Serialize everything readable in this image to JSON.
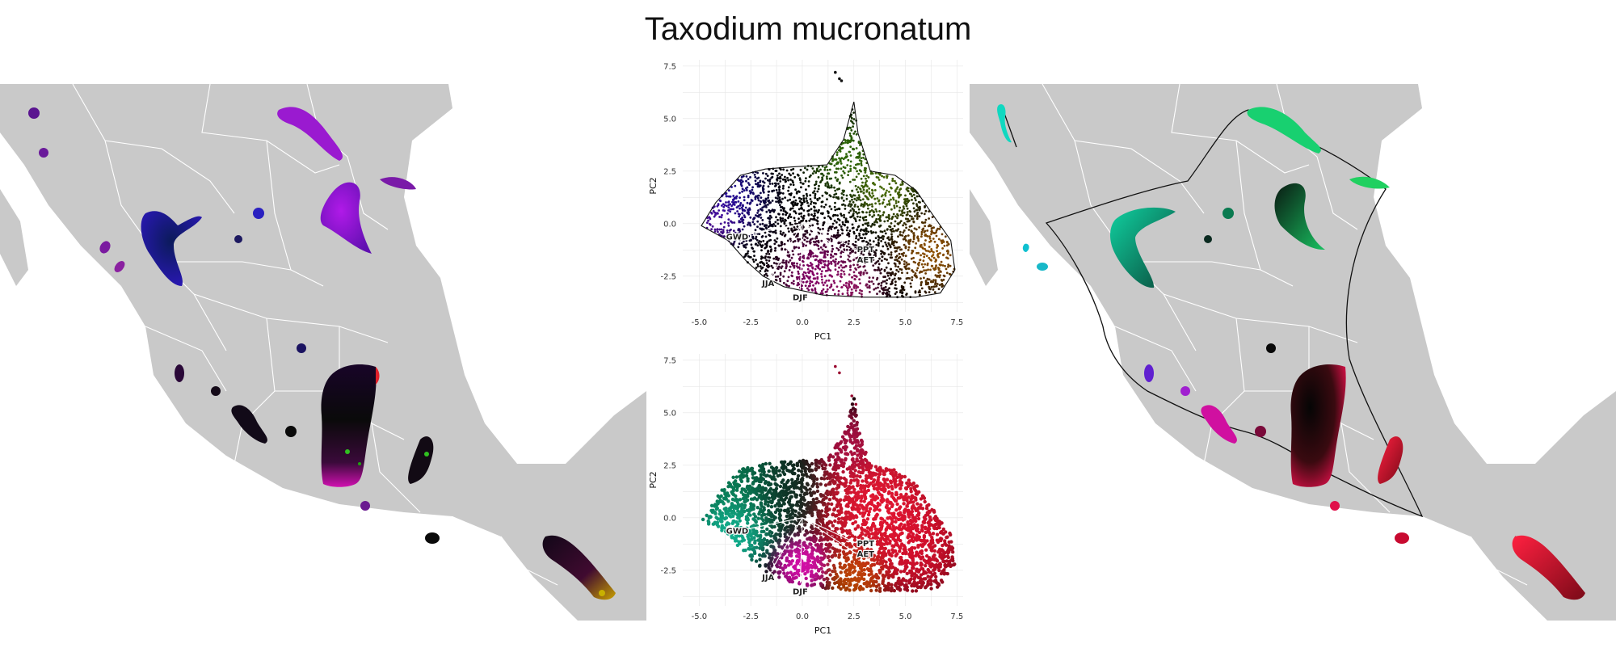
{
  "figure": {
    "title": "Taxodium mucronatum"
  },
  "colors": {
    "land": "#c9c9c9",
    "borders": "#ffffff",
    "grid": "#e6e6e6",
    "background": "#ffffff"
  },
  "maps": {
    "left": {
      "style": "climate-color"
    },
    "right": {
      "style": "cluster-color",
      "hull": "concave"
    }
  },
  "chart_data": [
    {
      "type": "scatter",
      "panel": "top",
      "xlabel": "PC1",
      "ylabel": "PC2",
      "xlim": [
        -5.8,
        7.8
      ],
      "ylim": [
        -4.2,
        7.8
      ],
      "xticks": [
        "-5.0",
        "-2.5",
        "0.0",
        "2.5",
        "5.0",
        "7.5"
      ],
      "xtick_values": [
        -5,
        -2.5,
        0,
        2.5,
        5,
        7.5
      ],
      "yticks": [
        "-2.5",
        "0.0",
        "2.5",
        "5.0",
        "7.5"
      ],
      "ytick_values": [
        -2.5,
        0,
        2.5,
        5,
        7.5
      ],
      "grid": true,
      "hull_outline": true,
      "outlier_points": [
        [
          1.6,
          7.2
        ],
        [
          1.8,
          6.9
        ],
        [
          1.9,
          6.8
        ]
      ],
      "boundary": [
        [
          -4.9,
          -0.1
        ],
        [
          -4.2,
          1.0
        ],
        [
          -3.0,
          2.3
        ],
        [
          -1.8,
          2.6
        ],
        [
          -0.5,
          2.7
        ],
        [
          1.2,
          2.8
        ],
        [
          2.0,
          4.0
        ],
        [
          2.5,
          5.8
        ],
        [
          2.7,
          4.3
        ],
        [
          3.3,
          2.5
        ],
        [
          4.5,
          2.3
        ],
        [
          5.5,
          1.6
        ],
        [
          6.2,
          0.6
        ],
        [
          7.2,
          -0.8
        ],
        [
          7.4,
          -2.2
        ],
        [
          6.7,
          -3.3
        ],
        [
          5.5,
          -3.5
        ],
        [
          3.0,
          -3.5
        ],
        [
          1.0,
          -3.4
        ],
        [
          -0.9,
          -3.0
        ],
        [
          -1.9,
          -2.5
        ],
        [
          -2.7,
          -1.8
        ],
        [
          -3.6,
          -0.8
        ],
        [
          -4.9,
          -0.1
        ]
      ],
      "vectors": [
        {
          "label": "GWD",
          "x": -3.0,
          "y": -0.6
        },
        {
          "label": "PPT",
          "x": 2.6,
          "y": -1.2
        },
        {
          "label": "AET",
          "x": 2.6,
          "y": -1.7
        },
        {
          "label": "JJA",
          "x": -1.5,
          "y": -2.5
        },
        {
          "label": "DJF",
          "x": -0.1,
          "y": -3.1
        }
      ],
      "color_regions": [
        {
          "color": "#2a10d8",
          "x": -3.6,
          "y": 1.2,
          "r": 1.6
        },
        {
          "color": "#7a12c8",
          "x": -4.2,
          "y": 0.2,
          "r": 1.1
        },
        {
          "color": "#48a00e",
          "x": 2.0,
          "y": 3.3,
          "r": 1.6
        },
        {
          "color": "#6fa20a",
          "x": 4.0,
          "y": 1.6,
          "r": 1.4
        },
        {
          "color": "#d87a00",
          "x": 6.3,
          "y": -1.4,
          "r": 1.5
        },
        {
          "color": "#c8009a",
          "x": 0.6,
          "y": -2.4,
          "r": 1.5
        },
        {
          "color": "#d0208a",
          "x": 2.4,
          "y": -3.0,
          "r": 1.2
        }
      ]
    },
    {
      "type": "scatter",
      "panel": "bottom",
      "xlabel": "PC1",
      "ylabel": "PC2",
      "xlim": [
        -5.8,
        7.8
      ],
      "ylim": [
        -4.2,
        7.8
      ],
      "xticks": [
        "-5.0",
        "-2.5",
        "0.0",
        "2.5",
        "5.0",
        "7.5"
      ],
      "xtick_values": [
        -5,
        -2.5,
        0,
        2.5,
        5,
        7.5
      ],
      "yticks": [
        "-2.5",
        "0.0",
        "2.5",
        "5.0",
        "7.5"
      ],
      "ytick_values": [
        -2.5,
        0,
        2.5,
        5,
        7.5
      ],
      "grid": true,
      "hull_outline": false,
      "outlier_points": [
        [
          1.6,
          7.2
        ],
        [
          1.8,
          6.9
        ],
        [
          2.4,
          5.8
        ],
        [
          2.6,
          5.4
        ]
      ],
      "boundary": [
        [
          -4.9,
          -0.1
        ],
        [
          -4.2,
          1.0
        ],
        [
          -3.0,
          2.3
        ],
        [
          -1.8,
          2.6
        ],
        [
          -0.5,
          2.7
        ],
        [
          1.2,
          2.8
        ],
        [
          2.0,
          4.0
        ],
        [
          2.5,
          5.8
        ],
        [
          2.7,
          4.3
        ],
        [
          3.3,
          2.5
        ],
        [
          4.5,
          2.3
        ],
        [
          5.5,
          1.6
        ],
        [
          6.2,
          0.6
        ],
        [
          7.2,
          -0.8
        ],
        [
          7.4,
          -2.2
        ],
        [
          6.7,
          -3.3
        ],
        [
          5.5,
          -3.5
        ],
        [
          3.0,
          -3.5
        ],
        [
          1.0,
          -3.4
        ],
        [
          -0.9,
          -3.0
        ],
        [
          -1.9,
          -2.5
        ],
        [
          -2.7,
          -1.8
        ],
        [
          -3.6,
          -0.8
        ],
        [
          -4.9,
          -0.1
        ]
      ],
      "vectors": [
        {
          "label": "GWD",
          "x": -3.0,
          "y": -0.6
        },
        {
          "label": "PPT",
          "x": 2.6,
          "y": -1.2
        },
        {
          "label": "AET",
          "x": 2.6,
          "y": -1.7
        },
        {
          "label": "JJA",
          "x": -1.5,
          "y": -2.5
        },
        {
          "label": "DJF",
          "x": -0.1,
          "y": -3.1
        }
      ],
      "color_regions": [
        {
          "color": "#0a8a5e",
          "x": -3.0,
          "y": 1.0,
          "r": 2.0
        },
        {
          "color": "#18d6b4",
          "x": -3.4,
          "y": -0.6,
          "r": 1.3
        },
        {
          "color": "#0c2a20",
          "x": -0.8,
          "y": 1.2,
          "r": 1.5
        },
        {
          "color": "#ff1a38",
          "x": 3.6,
          "y": 0.6,
          "r": 2.5
        },
        {
          "color": "#e81030",
          "x": 5.5,
          "y": -1.3,
          "r": 2.0
        },
        {
          "color": "#b0104a",
          "x": 2.2,
          "y": 3.5,
          "r": 1.2
        },
        {
          "color": "#d05000",
          "x": 2.6,
          "y": -2.7,
          "r": 1.1
        },
        {
          "color": "#f010c0",
          "x": 0.0,
          "y": -2.2,
          "r": 1.0
        }
      ]
    }
  ]
}
